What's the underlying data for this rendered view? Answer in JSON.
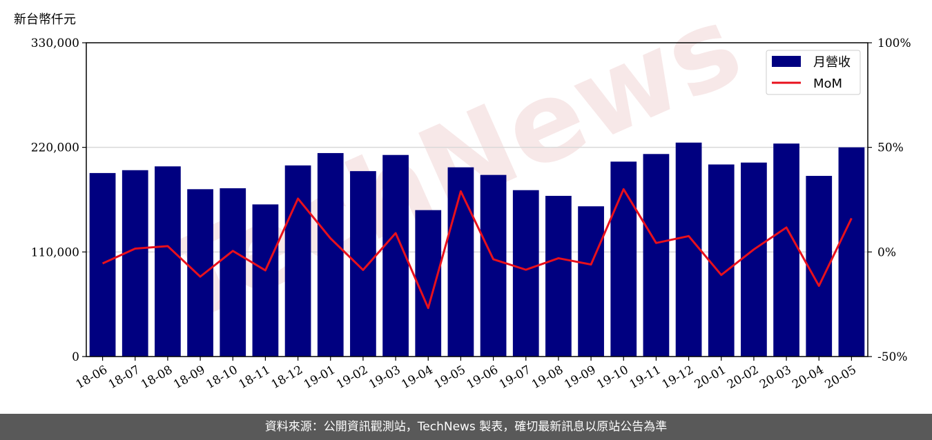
{
  "chart_data": {
    "type": "bar",
    "ylabel": "新台幣仟元",
    "ylim": [
      0,
      330000
    ],
    "yticks": [
      "0",
      "110,000",
      "220,000",
      "330,000"
    ],
    "y2lim": [
      -50,
      100
    ],
    "y2ticks": [
      "-50%",
      "0%",
      "50%",
      "100%"
    ],
    "grid": "horizontal",
    "legend_position": "top-right",
    "categories": [
      "18-06",
      "18-07",
      "18-08",
      "18-09",
      "18-10",
      "18-11",
      "18-12",
      "19-01",
      "19-02",
      "19-03",
      "19-04",
      "19-05",
      "19-06",
      "19-07",
      "19-08",
      "19-09",
      "19-10",
      "19-11",
      "19-12",
      "20-01",
      "20-02",
      "20-03",
      "20-04",
      "20-05"
    ],
    "series": [
      {
        "name": "月營收",
        "type": "bar",
        "color": "#000080",
        "values": [
          193000,
          196000,
          200000,
          176000,
          177000,
          160000,
          201000,
          214000,
          195000,
          212000,
          154000,
          199000,
          191000,
          175000,
          169000,
          158000,
          205000,
          213000,
          225000,
          202000,
          204000,
          224000,
          190000,
          220000
        ]
      },
      {
        "name": "MoM",
        "type": "line",
        "color": "#e8101c",
        "axis": "right",
        "values": [
          -5.5,
          1.6,
          2.8,
          -11.8,
          0.5,
          -8.8,
          25.5,
          6.5,
          -8.6,
          9.0,
          -26.8,
          29.0,
          -3.5,
          -8.5,
          -3.0,
          -6.0,
          30.0,
          4.3,
          7.6,
          -11.0,
          1.2,
          11.7,
          -16.2,
          16.1
        ]
      }
    ]
  },
  "watermark": "TechNews",
  "footer": {
    "text": "資料來源：公開資訊觀測站，TechNews 製表，確切最新訊息以原站公告為準"
  }
}
